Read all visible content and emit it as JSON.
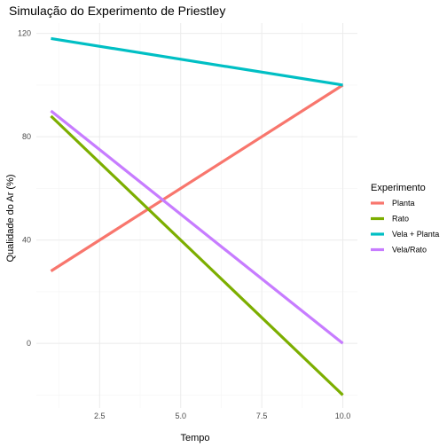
{
  "chart_data": {
    "type": "line",
    "title": "Simulação do Experimento de Priestley",
    "xlabel": "Tempo",
    "ylabel": "Qualidade do Ar (%)",
    "xlim": [
      0.55,
      10.45
    ],
    "ylim": [
      -25,
      124
    ],
    "x_ticks": [
      2.5,
      5.0,
      7.5,
      10.0
    ],
    "x_tick_labels": [
      "2.5",
      "5.0",
      "7.5",
      "10.0"
    ],
    "y_ticks": [
      0,
      40,
      80,
      120
    ],
    "y_tick_labels": [
      "0",
      "40",
      "80",
      "120"
    ],
    "grid": true,
    "legend": {
      "title": "Experimento",
      "position": "right"
    },
    "series": [
      {
        "name": "Planta",
        "color": "#F8766D",
        "x": [
          1,
          10
        ],
        "y": [
          28,
          100
        ]
      },
      {
        "name": "Rato",
        "color": "#7CAE00",
        "x": [
          1,
          10
        ],
        "y": [
          88,
          -20
        ]
      },
      {
        "name": "Vela + Planta",
        "color": "#00BFC4",
        "x": [
          1,
          10
        ],
        "y": [
          118,
          100
        ]
      },
      {
        "name": "Vela/Rato",
        "color": "#C77CFF",
        "x": [
          1,
          10
        ],
        "y": [
          90,
          0
        ]
      }
    ]
  }
}
